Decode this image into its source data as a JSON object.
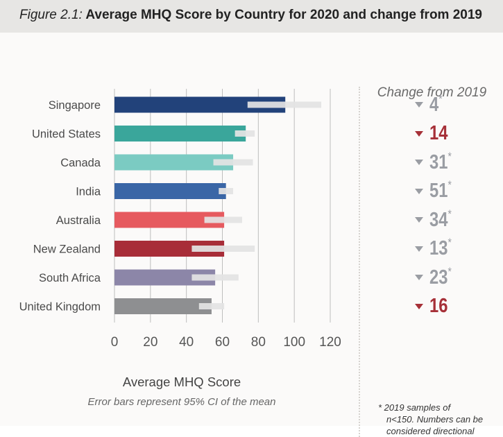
{
  "header": {
    "figure_label": "Figure 2.1:",
    "title": "Average MHQ Score by Country for 2020 and change from 2019"
  },
  "chart_data": {
    "type": "bar",
    "orientation": "horizontal",
    "categories": [
      "Singapore",
      "United States",
      "Canada",
      "India",
      "Australia",
      "New Zealand",
      "South Africa",
      "United Kingdom"
    ],
    "values": [
      95,
      73,
      66,
      62,
      61,
      61,
      56,
      54
    ],
    "error_bars": [
      [
        74,
        115
      ],
      [
        67,
        78
      ],
      [
        55,
        77
      ],
      [
        58,
        66
      ],
      [
        50,
        71
      ],
      [
        43,
        78
      ],
      [
        43,
        69
      ],
      [
        47,
        61
      ]
    ],
    "bar_colors": [
      "#22427a",
      "#3aa69b",
      "#7bcbc2",
      "#3a66a6",
      "#e65a5f",
      "#a82d38",
      "#8c86a8",
      "#8e8f91"
    ],
    "xlim": [
      0,
      120
    ],
    "xticks": [
      0,
      20,
      40,
      60,
      80,
      100,
      120
    ],
    "xlabel": "Average MHQ Score",
    "note": "Error bars represent 95% CI of the mean",
    "grid": true
  },
  "change": {
    "title": "Change from 2019",
    "rows": [
      {
        "value": "4",
        "mark": "*",
        "color": "gray"
      },
      {
        "value": "14",
        "mark": "",
        "color": "red"
      },
      {
        "value": "31",
        "mark": "*",
        "color": "gray"
      },
      {
        "value": "51",
        "mark": "*",
        "color": "gray"
      },
      {
        "value": "34",
        "mark": "*",
        "color": "gray"
      },
      {
        "value": "13",
        "mark": "*",
        "color": "gray"
      },
      {
        "value": "23",
        "mark": "*",
        "color": "gray"
      },
      {
        "value": "16",
        "mark": "",
        "color": "red"
      }
    ],
    "footnote_line1": "* 2019 samples of",
    "footnote_line2": "n<150. Numbers can be",
    "footnote_line3": "considered directional"
  }
}
